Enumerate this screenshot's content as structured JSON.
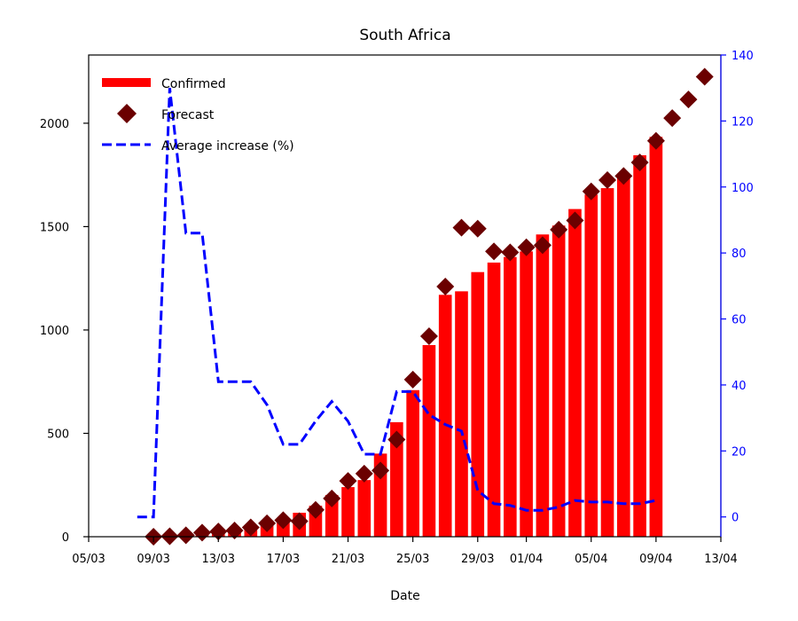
{
  "chart_data": {
    "type": "bar",
    "title": "South Africa",
    "xlabel": "Date",
    "ylabel": "",
    "x_start": "05/03",
    "x_end": "13/04",
    "x_ticks": [
      "05/03",
      "09/03",
      "13/03",
      "17/03",
      "21/03",
      "25/03",
      "29/03",
      "01/04",
      "05/04",
      "09/04",
      "13/04"
    ],
    "ylim": [
      0,
      2330
    ],
    "y_ticks": [
      0,
      500,
      1000,
      1500,
      2000
    ],
    "y2lim": [
      -6,
      140
    ],
    "y2_ticks": [
      0,
      20,
      40,
      60,
      80,
      100,
      120,
      140
    ],
    "y2_color": "#0000ff",
    "legend_position": "upper-left",
    "legend": [
      "Confirmed",
      "Forecast",
      "Average increase (%)"
    ],
    "series": [
      {
        "name": "Confirmed",
        "kind": "bar",
        "color": "#ff0000",
        "points": [
          [
            "09/03",
            3
          ],
          [
            "10/03",
            7
          ],
          [
            "11/03",
            13
          ],
          [
            "12/03",
            17
          ],
          [
            "13/03",
            24
          ],
          [
            "14/03",
            38
          ],
          [
            "15/03",
            51
          ],
          [
            "16/03",
            62
          ],
          [
            "17/03",
            85
          ],
          [
            "18/03",
            116
          ],
          [
            "19/03",
            150
          ],
          [
            "20/03",
            202
          ],
          [
            "21/03",
            240
          ],
          [
            "22/03",
            274
          ],
          [
            "23/03",
            402
          ],
          [
            "24/03",
            554
          ],
          [
            "25/03",
            709
          ],
          [
            "26/03",
            927
          ],
          [
            "27/03",
            1170
          ],
          [
            "28/03",
            1187
          ],
          [
            "29/03",
            1280
          ],
          [
            "30/03",
            1326
          ],
          [
            "31/03",
            1353
          ],
          [
            "01/04",
            1380
          ],
          [
            "02/04",
            1462
          ],
          [
            "03/04",
            1505
          ],
          [
            "04/04",
            1585
          ],
          [
            "05/04",
            1655
          ],
          [
            "06/04",
            1686
          ],
          [
            "07/04",
            1749
          ],
          [
            "08/04",
            1845
          ],
          [
            "09/04",
            1934
          ]
        ]
      },
      {
        "name": "Forecast",
        "kind": "scatter",
        "color": "#6b0000",
        "points": [
          [
            "09/03",
            0
          ],
          [
            "10/03",
            2
          ],
          [
            "11/03",
            7
          ],
          [
            "12/03",
            20
          ],
          [
            "13/03",
            25
          ],
          [
            "14/03",
            30
          ],
          [
            "15/03",
            45
          ],
          [
            "16/03",
            65
          ],
          [
            "17/03",
            80
          ],
          [
            "18/03",
            75
          ],
          [
            "19/03",
            130
          ],
          [
            "20/03",
            185
          ],
          [
            "21/03",
            270
          ],
          [
            "22/03",
            305
          ],
          [
            "23/03",
            320
          ],
          [
            "24/03",
            470
          ],
          [
            "25/03",
            760
          ],
          [
            "26/03",
            970
          ],
          [
            "27/03",
            1210
          ],
          [
            "28/03",
            1495
          ],
          [
            "29/03",
            1490
          ],
          [
            "30/03",
            1380
          ],
          [
            "31/03",
            1375
          ],
          [
            "01/04",
            1400
          ],
          [
            "02/04",
            1410
          ],
          [
            "03/04",
            1485
          ],
          [
            "04/04",
            1530
          ],
          [
            "05/04",
            1670
          ],
          [
            "06/04",
            1725
          ],
          [
            "07/04",
            1745
          ],
          [
            "08/04",
            1810
          ],
          [
            "09/04",
            1915
          ],
          [
            "10/04",
            2025
          ],
          [
            "11/04",
            2115
          ],
          [
            "12/04",
            2225
          ]
        ]
      },
      {
        "name": "Average increase (%)",
        "kind": "line",
        "axis": "right",
        "color": "#0000ff",
        "style": "dashed",
        "points": [
          [
            "08/03",
            0
          ],
          [
            "09/03",
            0
          ],
          [
            "10/03",
            130
          ],
          [
            "11/03",
            86
          ],
          [
            "12/03",
            86
          ],
          [
            "13/03",
            41
          ],
          [
            "14/03",
            41
          ],
          [
            "15/03",
            41
          ],
          [
            "16/03",
            34
          ],
          [
            "17/03",
            22
          ],
          [
            "18/03",
            22
          ],
          [
            "19/03",
            29
          ],
          [
            "20/03",
            35
          ],
          [
            "21/03",
            29
          ],
          [
            "22/03",
            19
          ],
          [
            "23/03",
            19
          ],
          [
            "24/03",
            38
          ],
          [
            "25/03",
            38
          ],
          [
            "26/03",
            31
          ],
          [
            "27/03",
            28
          ],
          [
            "28/03",
            26
          ],
          [
            "29/03",
            8
          ],
          [
            "30/03",
            4
          ],
          [
            "31/03",
            3.5
          ],
          [
            "01/04",
            2
          ],
          [
            "02/04",
            2
          ],
          [
            "03/04",
            3
          ],
          [
            "04/04",
            5
          ],
          [
            "05/04",
            4.5
          ],
          [
            "06/04",
            4.5
          ],
          [
            "07/04",
            4
          ],
          [
            "08/04",
            4
          ],
          [
            "09/04",
            5
          ]
        ]
      }
    ]
  }
}
